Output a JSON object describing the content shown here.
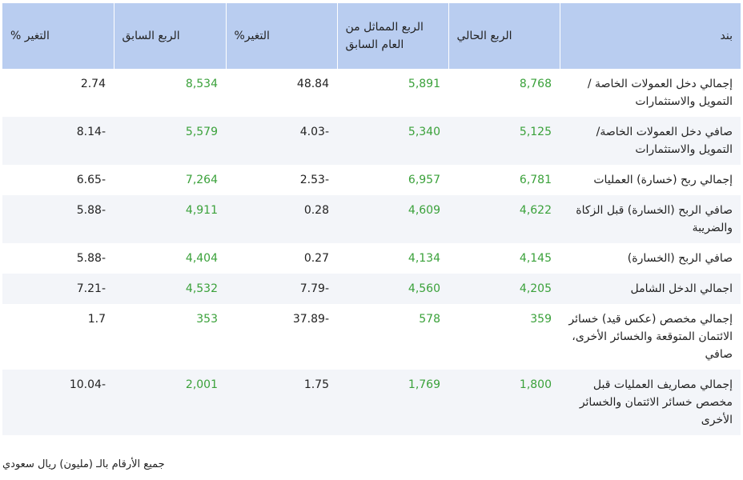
{
  "headers": {
    "item": "بند",
    "current_quarter": "الربع الحالي",
    "same_quarter_last_year": "الربع المماثل من العام السابق",
    "change_1": "التغير%",
    "previous_quarter": "الربع السابق",
    "change_2": "التغير %"
  },
  "rows": [
    {
      "item": "إجمالي دخل العمولات الخاصة / التمويل والاستثمارات",
      "current": "8,768",
      "same": "5,891",
      "chg1": "48.84",
      "prev": "8,534",
      "chg2": "2.74"
    },
    {
      "item": "صافي دخل العمولات الخاصة/ التمويل والاستثمارات",
      "current": "5,125",
      "same": "5,340",
      "chg1": "4.03-",
      "prev": "5,579",
      "chg2": "8.14-"
    },
    {
      "item": "إجمالي ربح (خسارة) العمليات",
      "current": "6,781",
      "same": "6,957",
      "chg1": "2.53-",
      "prev": "7,264",
      "chg2": "6.65-"
    },
    {
      "item": "صافي الربح (الخسارة) قبل الزكاة والضريبة",
      "current": "4,622",
      "same": "4,609",
      "chg1": "0.28",
      "prev": "4,911",
      "chg2": "5.88-"
    },
    {
      "item": "صافي الربح (الخسارة)",
      "current": "4,145",
      "same": "4,134",
      "chg1": "0.27",
      "prev": "4,404",
      "chg2": "5.88-"
    },
    {
      "item": "اجمالي الدخل الشامل",
      "current": "4,205",
      "same": "4,560",
      "chg1": "7.79-",
      "prev": "4,532",
      "chg2": "7.21-"
    },
    {
      "item": "إجمالي مخصص (عكس قيد) خسائر الائتمان المتوقعة والخسائر الأخرى، صافي",
      "current": "359",
      "same": "578",
      "chg1": "37.89-",
      "prev": "353",
      "chg2": "1.7"
    },
    {
      "item": "إجمالي مصاريف العمليات قبل مخصص خسائر الائتمان والخسائر الأخرى",
      "current": "1,800",
      "same": "1,769",
      "chg1": "1.75",
      "prev": "2,001",
      "chg2": "10.04-"
    }
  ],
  "footnote": "جميع الأرقام بالـ (مليون) ريال سعودي",
  "colors": {
    "header_bg": "#b9cdf0",
    "value_green": "#3aa13a",
    "stripe": "#f3f5f9"
  }
}
